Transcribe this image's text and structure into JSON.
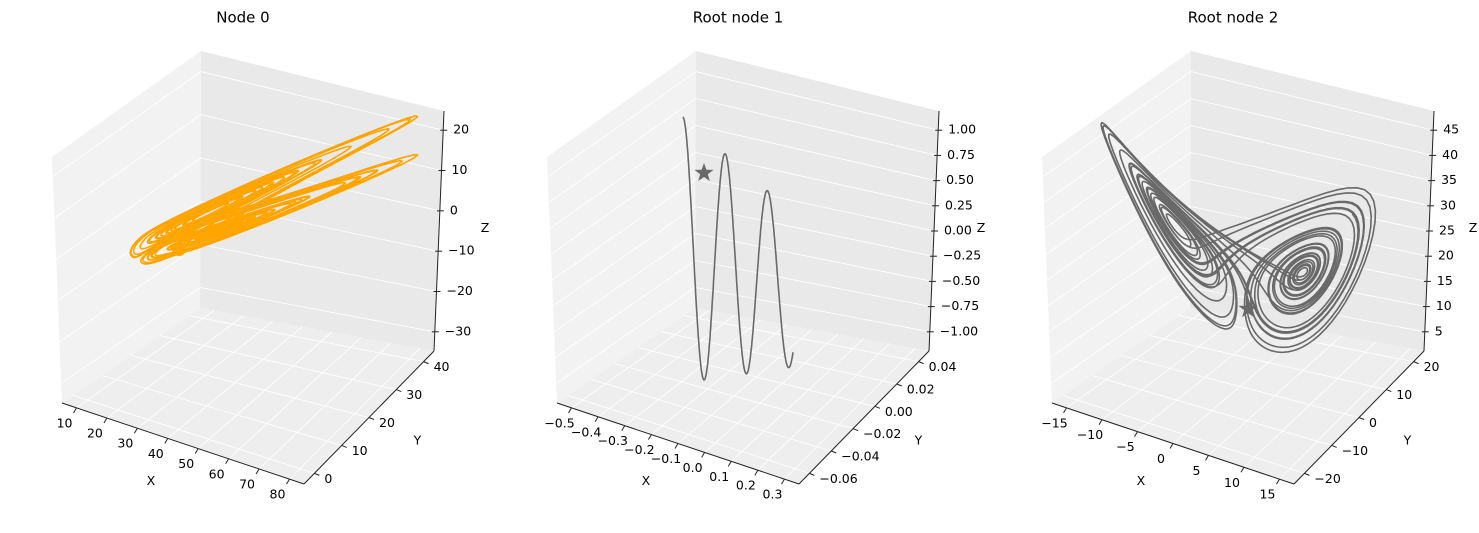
{
  "chart_data": [
    {
      "type": "line3d",
      "title": "Node 0",
      "xlabel": "X",
      "ylabel": "Y",
      "zlabel": "Z",
      "xticks": [
        "10",
        "20",
        "30",
        "40",
        "50",
        "60",
        "70",
        "80"
      ],
      "yticks": [
        "0",
        "10",
        "20",
        "30",
        "40"
      ],
      "zticks": [
        "20",
        "10",
        "0",
        "−10",
        "−20",
        "−30"
      ],
      "series_color": "#ffa500",
      "marker": "circle",
      "grid": true
    },
    {
      "type": "line3d",
      "title": "Root node 1",
      "xlabel": "X",
      "ylabel": "Y",
      "zlabel": "Z",
      "xticks": [
        "−0.5",
        "−0.4",
        "−0.3",
        "−0.2",
        "−0.1",
        "0.0",
        "0.1",
        "0.2",
        "0.3"
      ],
      "yticks": [
        "−0.06",
        "−0.04",
        "−0.02",
        "0.00",
        "0.02",
        "0.04"
      ],
      "zticks": [
        "1.00",
        "0.75",
        "0.50",
        "0.25",
        "0.00",
        "−0.25",
        "−0.50",
        "−0.75",
        "−1.00"
      ],
      "series_color": "#696969",
      "marker": "star",
      "grid": true
    },
    {
      "type": "line3d",
      "title": "Root node 2",
      "xlabel": "X",
      "ylabel": "Y",
      "zlabel": "Z",
      "xticks": [
        "−15",
        "−10",
        "−5",
        "0",
        "5",
        "10",
        "15"
      ],
      "yticks": [
        "−20",
        "−10",
        "0",
        "10",
        "20"
      ],
      "zticks": [
        "45",
        "40",
        "35",
        "30",
        "25",
        "20",
        "15",
        "10",
        "5"
      ],
      "series_color": "#696969",
      "marker": "star",
      "grid": true
    }
  ]
}
